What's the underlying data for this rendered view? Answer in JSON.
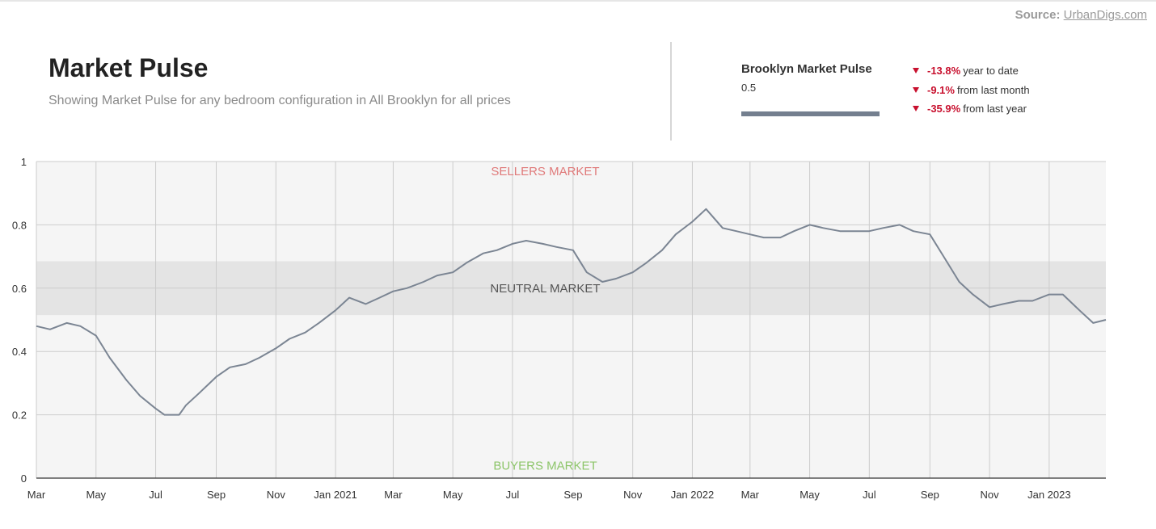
{
  "source": {
    "label": "Source:",
    "link_text": "UrbanDigs.com"
  },
  "header": {
    "title": "Market Pulse",
    "subtitle": "Showing Market Pulse for any bedroom configuration in All Brooklyn for all prices"
  },
  "summary": {
    "title": "Brooklyn Market Pulse",
    "value": "0.5",
    "level": 1.0,
    "changes": [
      {
        "value": "-13.8%",
        "label": "year to date"
      },
      {
        "value": "-9.1%",
        "label": "from last month"
      },
      {
        "value": "-35.9%",
        "label": "from last year"
      }
    ]
  },
  "colors": {
    "line": "#7b8593",
    "negative": "#c8102e",
    "sellers": "#e07a7a",
    "buyers": "#8dc56a",
    "neutral_band": "#e4e4e4",
    "plot_bg": "#f5f5f5"
  },
  "chart_data": {
    "type": "line",
    "title": "",
    "xlabel": "",
    "ylabel": "",
    "ylim": [
      0,
      1
    ],
    "yticks": [
      0,
      0.2,
      0.4,
      0.6,
      0.8,
      1
    ],
    "ytick_labels": [
      "0",
      "0.2",
      "0.4",
      "0.6",
      "0.8",
      "1"
    ],
    "xlim": [
      "2020-03-01",
      "2023-02-28"
    ],
    "xticks": [
      "2020-03-01",
      "2020-05-01",
      "2020-07-01",
      "2020-09-01",
      "2020-11-01",
      "2021-01-01",
      "2021-03-01",
      "2021-05-01",
      "2021-07-01",
      "2021-09-01",
      "2021-11-01",
      "2022-01-01",
      "2022-03-01",
      "2022-05-01",
      "2022-07-01",
      "2022-09-01",
      "2022-11-01",
      "2023-01-01"
    ],
    "xtick_labels": [
      "Mar",
      "May",
      "Jul",
      "Sep",
      "Nov",
      "Jan 2021",
      "Mar",
      "May",
      "Jul",
      "Sep",
      "Nov",
      "Jan 2022",
      "Mar",
      "May",
      "Jul",
      "Sep",
      "Nov",
      "Jan 2023"
    ],
    "grid": true,
    "bands": [
      {
        "label": "NEUTRAL MARKET",
        "from": 0.515,
        "to": 0.685
      }
    ],
    "zone_labels": [
      {
        "label": "SELLERS MARKET",
        "y": 0.97
      },
      {
        "label": "NEUTRAL MARKET",
        "y": 0.6
      },
      {
        "label": "BUYERS MARKET",
        "y": 0.04
      }
    ],
    "series": [
      {
        "x": [
          "2020-03-01",
          "2020-03-15",
          "2020-04-01",
          "2020-04-15",
          "2020-05-01",
          "2020-05-15",
          "2020-06-01",
          "2020-06-15",
          "2020-07-01",
          "2020-07-10",
          "2020-07-25",
          "2020-08-01",
          "2020-08-15",
          "2020-09-01",
          "2020-09-15",
          "2020-10-01",
          "2020-10-15",
          "2020-11-01",
          "2020-11-15",
          "2020-12-01",
          "2020-12-15",
          "2021-01-01",
          "2021-01-15",
          "2021-02-01",
          "2021-02-15",
          "2021-03-01",
          "2021-03-15",
          "2021-04-01",
          "2021-04-15",
          "2021-05-01",
          "2021-05-15",
          "2021-06-01",
          "2021-06-15",
          "2021-07-01",
          "2021-07-15",
          "2021-08-01",
          "2021-08-15",
          "2021-09-01",
          "2021-09-15",
          "2021-10-01",
          "2021-10-15",
          "2021-11-01",
          "2021-11-15",
          "2021-12-01",
          "2021-12-15",
          "2022-01-01",
          "2022-01-15",
          "2022-02-01",
          "2022-02-15",
          "2022-03-01",
          "2022-03-15",
          "2022-04-01",
          "2022-04-15",
          "2022-05-01",
          "2022-05-15",
          "2022-06-01",
          "2022-06-15",
          "2022-07-01",
          "2022-07-15",
          "2022-08-01",
          "2022-08-15",
          "2022-09-01",
          "2022-09-15",
          "2022-10-01",
          "2022-10-15",
          "2022-11-01",
          "2022-11-15",
          "2022-12-01",
          "2022-12-15",
          "2023-01-01",
          "2023-01-15",
          "2023-02-01",
          "2023-02-15",
          "2023-02-28"
        ],
        "y": [
          0.48,
          0.47,
          0.49,
          0.48,
          0.45,
          0.38,
          0.31,
          0.26,
          0.22,
          0.2,
          0.2,
          0.23,
          0.27,
          0.32,
          0.35,
          0.36,
          0.38,
          0.41,
          0.44,
          0.46,
          0.49,
          0.53,
          0.57,
          0.55,
          0.57,
          0.59,
          0.6,
          0.62,
          0.64,
          0.65,
          0.68,
          0.71,
          0.72,
          0.74,
          0.75,
          0.74,
          0.73,
          0.72,
          0.65,
          0.62,
          0.63,
          0.65,
          0.68,
          0.72,
          0.77,
          0.81,
          0.85,
          0.79,
          0.78,
          0.77,
          0.76,
          0.76,
          0.78,
          0.8,
          0.79,
          0.78,
          0.78,
          0.78,
          0.79,
          0.8,
          0.78,
          0.77,
          0.7,
          0.62,
          0.58,
          0.54,
          0.55,
          0.56,
          0.56,
          0.58,
          0.58,
          0.53,
          0.49,
          0.5
        ]
      }
    ]
  }
}
